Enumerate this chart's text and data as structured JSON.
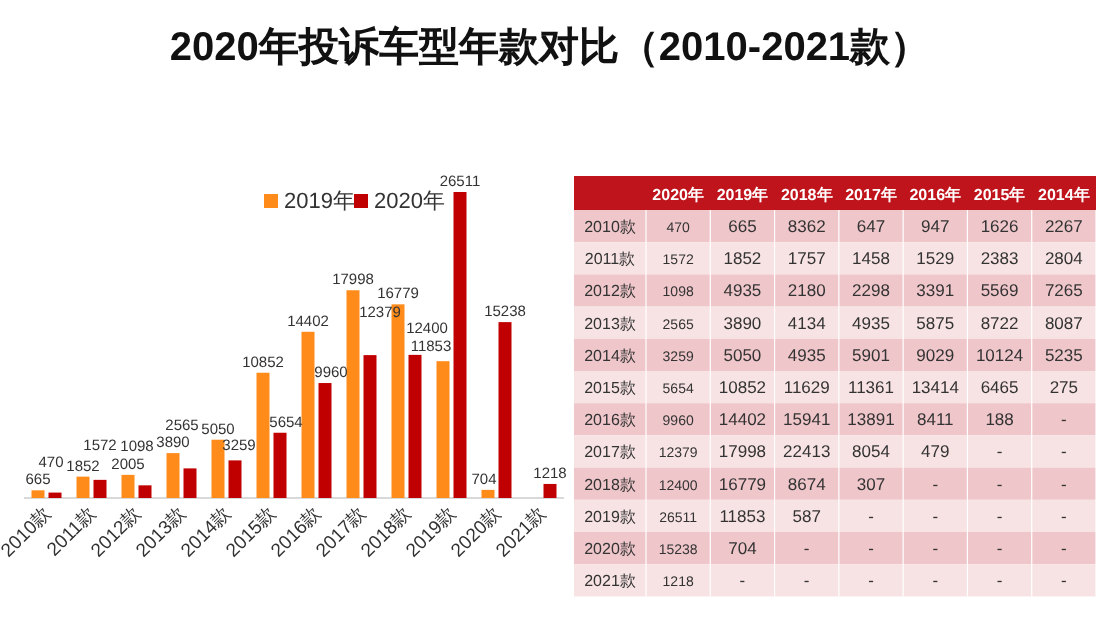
{
  "chart_data": [
    {
      "type": "bar",
      "title": "2020年投诉车型年款对比（2010-2021款）",
      "categories": [
        "2010款",
        "2011款",
        "2012款",
        "2013款",
        "2014款",
        "2015款",
        "2016款",
        "2017款",
        "2018款",
        "2019款",
        "2020款",
        "2021款"
      ],
      "series": [
        {
          "name": "2019年",
          "color": "#ff8c1a",
          "values": [
            665,
            1852,
            2005,
            3890,
            5050,
            10852,
            14402,
            17998,
            16779,
            11853,
            704,
            null
          ]
        },
        {
          "name": "2020年",
          "color": "#c00000",
          "values": [
            470,
            1572,
            1098,
            2565,
            3259,
            5654,
            9960,
            12379,
            12400,
            26511,
            15238,
            1218
          ]
        }
      ],
      "data_labels": true,
      "legend": "top",
      "grid": false
    },
    {
      "type": "heatmap",
      "categories": [
        "2020年",
        "2019年",
        "2018年",
        "2017年",
        "2016年",
        "2015年",
        "2014年"
      ],
      "y_categories": [
        "2010款",
        "2011款",
        "2012款",
        "2013款",
        "2014款",
        "2015款",
        "2016款",
        "2017款",
        "2018款",
        "2019款",
        "2020款",
        "2021款"
      ],
      "cells": [
        [
          470,
          665,
          8362,
          647,
          947,
          1626,
          2267
        ],
        [
          1572,
          1852,
          1757,
          1458,
          1529,
          2383,
          2804
        ],
        [
          1098,
          4935,
          2180,
          2298,
          3391,
          5569,
          7265
        ],
        [
          2565,
          3890,
          4134,
          4935,
          5875,
          8722,
          8087
        ],
        [
          3259,
          5050,
          4935,
          5901,
          9029,
          10124,
          5235
        ],
        [
          5654,
          10852,
          11629,
          11361,
          13414,
          6465,
          275
        ],
        [
          9960,
          14402,
          15941,
          13891,
          8411,
          188,
          null
        ],
        [
          12379,
          17998,
          22413,
          8054,
          479,
          null,
          null
        ],
        [
          12400,
          16779,
          8674,
          307,
          null,
          null,
          null
        ],
        [
          26511,
          11853,
          587,
          null,
          null,
          null,
          null
        ],
        [
          15238,
          704,
          null,
          null,
          null,
          null,
          null
        ],
        [
          1218,
          null,
          null,
          null,
          null,
          null,
          null
        ]
      ],
      "cell_labels": [
        [
          "470",
          "665",
          "8362",
          "647",
          "947",
          "1626",
          "2267"
        ],
        [
          "1572",
          "1852",
          "1757",
          "1458",
          "1529",
          "2383",
          "2804"
        ],
        [
          "1098",
          "4935",
          "2180",
          "2298",
          "3391",
          "5569",
          "7265"
        ],
        [
          "2565",
          "3890",
          "4134",
          "4935",
          "5875",
          "8722",
          "8087"
        ],
        [
          "3259",
          "5050",
          "4935",
          "5901",
          "9029",
          "10124",
          "5235"
        ],
        [
          "5654",
          "10852",
          "11629",
          "11361",
          "13414",
          "6465",
          "275"
        ],
        [
          "9960",
          "14402",
          "15941",
          "13891",
          "8411",
          "188",
          "-"
        ],
        [
          "12379",
          "17998",
          "22413",
          "8054",
          "479",
          "-",
          "-"
        ],
        [
          "12400",
          "16779",
          "8674",
          "307",
          "-",
          "-",
          "-"
        ],
        [
          "26511",
          "11853",
          "587",
          "-",
          "-",
          "-",
          "-"
        ],
        [
          "15238",
          "704",
          "-",
          "-",
          "-",
          "-",
          "-"
        ],
        [
          "1218",
          "-",
          "-",
          "-",
          "-",
          "-",
          "-"
        ]
      ]
    }
  ]
}
